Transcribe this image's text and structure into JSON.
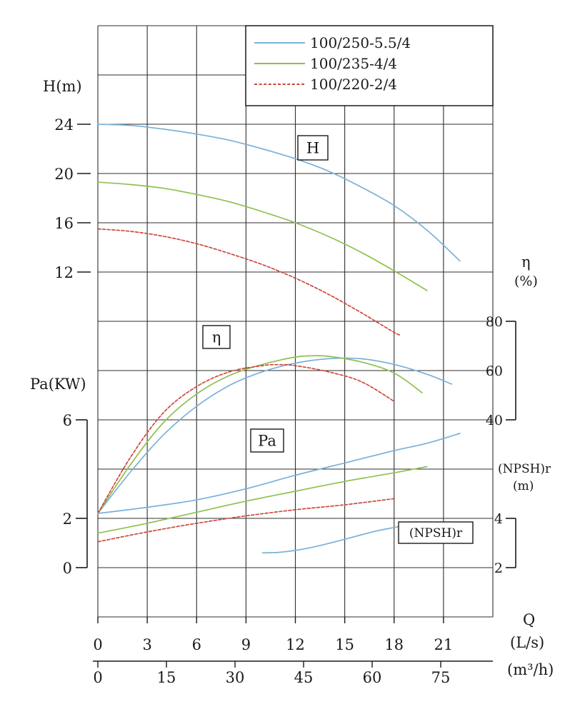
{
  "chart_data": {
    "type": "line",
    "x": {
      "label": "Q",
      "unit_rows": [
        {
          "unit": "(L/s)",
          "ticks": [
            0,
            3,
            6,
            9,
            12,
            15,
            18,
            21
          ]
        },
        {
          "unit": "(m³/h)",
          "ticks": [
            0,
            15,
            30,
            45,
            60,
            75
          ]
        }
      ],
      "range_ls": [
        0,
        24
      ]
    },
    "y_axes": [
      {
        "id": "H",
        "label": "H(m)",
        "ticks": [
          24,
          20,
          16,
          12
        ],
        "side": "left"
      },
      {
        "id": "Pa",
        "label": "Pa(KW)",
        "ticks": [
          6,
          2,
          0
        ],
        "side": "left"
      },
      {
        "id": "eta",
        "label": "η",
        "unit": "(%)",
        "ticks": [
          80,
          60,
          40
        ],
        "side": "right"
      },
      {
        "id": "npsh",
        "label": "(NPSH)r",
        "unit": "(m)",
        "ticks": [
          4,
          2
        ],
        "side": "right"
      }
    ],
    "legend": [
      {
        "label": "100/250-5.5/4",
        "color": "#79b1d8",
        "line_style": "solid"
      },
      {
        "label": "100/235-4/4",
        "color": "#8fc04f",
        "line_style": "solid"
      },
      {
        "label": "100/220-2/4",
        "color": "#cc4a3d",
        "line_style": "dotted"
      }
    ],
    "curve_labels": {
      "h": "H",
      "eta": "η",
      "pa": "Pa",
      "npsh": "(NPSH)r"
    },
    "series": [
      {
        "id": "H-100-250",
        "axis": "H",
        "pump": "100/250-5.5/4",
        "points": [
          [
            0,
            24
          ],
          [
            2,
            23.9
          ],
          [
            4,
            23.6
          ],
          [
            6,
            23.2
          ],
          [
            8,
            22.7
          ],
          [
            10,
            22.0
          ],
          [
            12,
            21.2
          ],
          [
            14,
            20.2
          ],
          [
            16,
            18.9
          ],
          [
            18,
            17.4
          ],
          [
            20,
            15.4
          ],
          [
            22,
            12.9
          ]
        ]
      },
      {
        "id": "H-100-235",
        "axis": "H",
        "pump": "100/235-4/4",
        "points": [
          [
            0,
            19.3
          ],
          [
            2,
            19.1
          ],
          [
            4,
            18.8
          ],
          [
            6,
            18.3
          ],
          [
            8,
            17.7
          ],
          [
            10,
            16.9
          ],
          [
            12,
            16.0
          ],
          [
            14,
            14.9
          ],
          [
            16,
            13.6
          ],
          [
            18,
            12.1
          ],
          [
            20,
            10.5
          ]
        ]
      },
      {
        "id": "H-100-220",
        "axis": "H",
        "pump": "100/220-2/4",
        "points": [
          [
            0,
            15.5
          ],
          [
            2,
            15.3
          ],
          [
            4,
            14.9
          ],
          [
            6,
            14.3
          ],
          [
            8,
            13.5
          ],
          [
            10,
            12.6
          ],
          [
            12,
            11.5
          ],
          [
            14,
            10.2
          ],
          [
            16,
            8.7
          ],
          [
            18,
            7.1
          ],
          [
            18.4,
            6.9
          ]
        ]
      },
      {
        "id": "eta-100-250",
        "axis": "eta",
        "pump": "100/250-5.5/4",
        "points": [
          [
            0,
            2
          ],
          [
            2,
            19
          ],
          [
            4,
            34
          ],
          [
            6,
            45.5
          ],
          [
            8,
            54
          ],
          [
            10,
            59.5
          ],
          [
            12,
            63
          ],
          [
            14,
            64.8
          ],
          [
            16,
            64.8
          ],
          [
            18,
            62.5
          ],
          [
            20,
            58.5
          ],
          [
            21.5,
            54.5
          ]
        ]
      },
      {
        "id": "eta-100-235",
        "axis": "eta",
        "pump": "100/235-4/4",
        "points": [
          [
            0,
            2
          ],
          [
            2,
            22
          ],
          [
            4,
            39
          ],
          [
            6,
            50.5
          ],
          [
            8,
            58
          ],
          [
            10,
            62.5
          ],
          [
            12,
            65.5
          ],
          [
            13,
            66
          ],
          [
            14,
            65.8
          ],
          [
            16,
            63.5
          ],
          [
            18,
            59
          ],
          [
            19.7,
            51
          ]
        ]
      },
      {
        "id": "eta-100-220",
        "axis": "eta",
        "pump": "100/220-2/4",
        "points": [
          [
            0,
            2
          ],
          [
            2,
            25
          ],
          [
            4,
            43
          ],
          [
            6,
            53.5
          ],
          [
            8,
            59.5
          ],
          [
            10,
            62
          ],
          [
            11,
            62.4
          ],
          [
            12,
            62
          ],
          [
            14,
            59.5
          ],
          [
            16,
            55.5
          ],
          [
            18,
            47.5
          ]
        ]
      },
      {
        "id": "Pa-100-250",
        "axis": "Pa",
        "pump": "100/250-5.5/4",
        "points": [
          [
            0,
            2.2
          ],
          [
            3,
            2.45
          ],
          [
            6,
            2.75
          ],
          [
            9,
            3.2
          ],
          [
            12,
            3.75
          ],
          [
            15,
            4.25
          ],
          [
            18,
            4.75
          ],
          [
            20,
            5.05
          ],
          [
            22,
            5.45
          ]
        ]
      },
      {
        "id": "Pa-100-235",
        "axis": "Pa",
        "pump": "100/235-4/4",
        "points": [
          [
            0,
            1.4
          ],
          [
            3,
            1.8
          ],
          [
            6,
            2.25
          ],
          [
            9,
            2.7
          ],
          [
            12,
            3.1
          ],
          [
            15,
            3.5
          ],
          [
            18,
            3.85
          ],
          [
            20,
            4.1
          ]
        ]
      },
      {
        "id": "Pa-100-220",
        "axis": "Pa",
        "pump": "100/220-2/4",
        "points": [
          [
            0,
            1.05
          ],
          [
            3,
            1.45
          ],
          [
            6,
            1.8
          ],
          [
            9,
            2.1
          ],
          [
            12,
            2.35
          ],
          [
            15,
            2.55
          ],
          [
            18,
            2.8
          ]
        ]
      },
      {
        "id": "npsh-100-250",
        "axis": "npsh",
        "pump": "100/250-5.5/4",
        "points": [
          [
            10,
            2.6
          ],
          [
            11,
            2.62
          ],
          [
            12,
            2.7
          ],
          [
            13,
            2.82
          ],
          [
            14,
            2.98
          ],
          [
            15,
            3.15
          ],
          [
            16,
            3.33
          ],
          [
            17,
            3.5
          ],
          [
            18,
            3.63
          ],
          [
            18.5,
            3.7
          ]
        ]
      }
    ]
  }
}
